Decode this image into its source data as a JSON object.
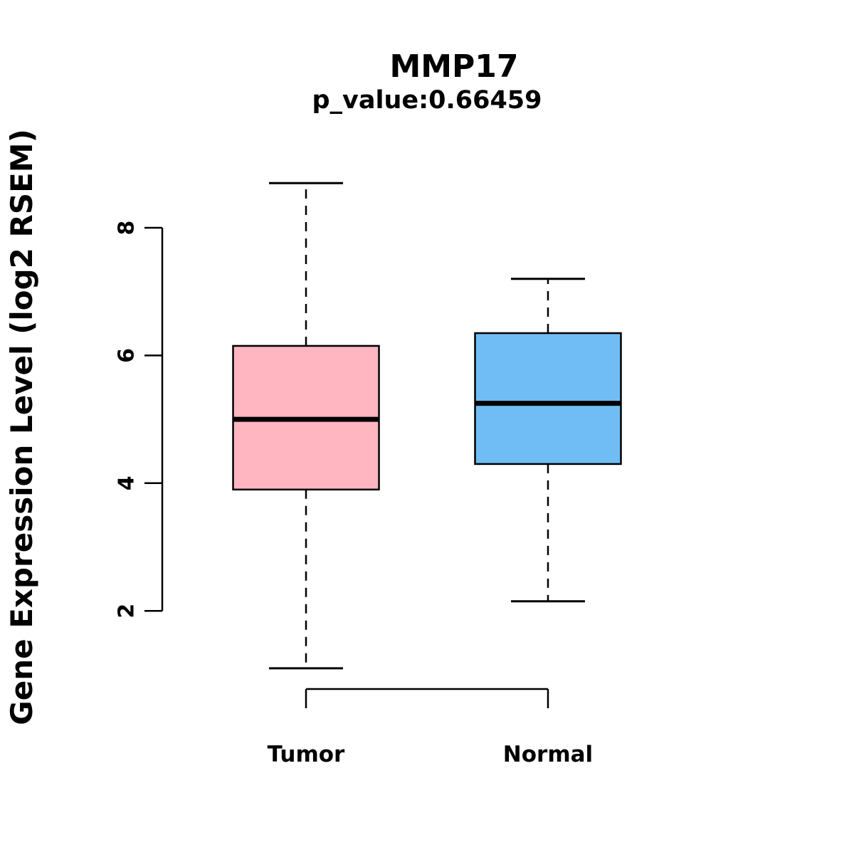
{
  "chart_data": {
    "type": "boxplot",
    "title": "MMP17",
    "subtitle": "p_value:0.66459",
    "ylabel": "Gene Expression Level (log2 RSEM)",
    "categories": [
      "Tumor",
      "Normal"
    ],
    "yticks": [
      "2",
      "4",
      "6",
      "8"
    ],
    "ylim": [
      1.0,
      8.8
    ],
    "grid": false,
    "legend": "none",
    "series": [
      {
        "name": "Tumor",
        "color": "#FFB6C1",
        "whisker_low": 1.1,
        "q1": 3.9,
        "median": 5.0,
        "q3": 6.15,
        "whisker_high": 8.7
      },
      {
        "name": "Normal",
        "color": "#6FBDF4",
        "whisker_low": 2.15,
        "q1": 4.3,
        "median": 5.25,
        "q3": 6.35,
        "whisker_high": 7.2
      }
    ]
  }
}
